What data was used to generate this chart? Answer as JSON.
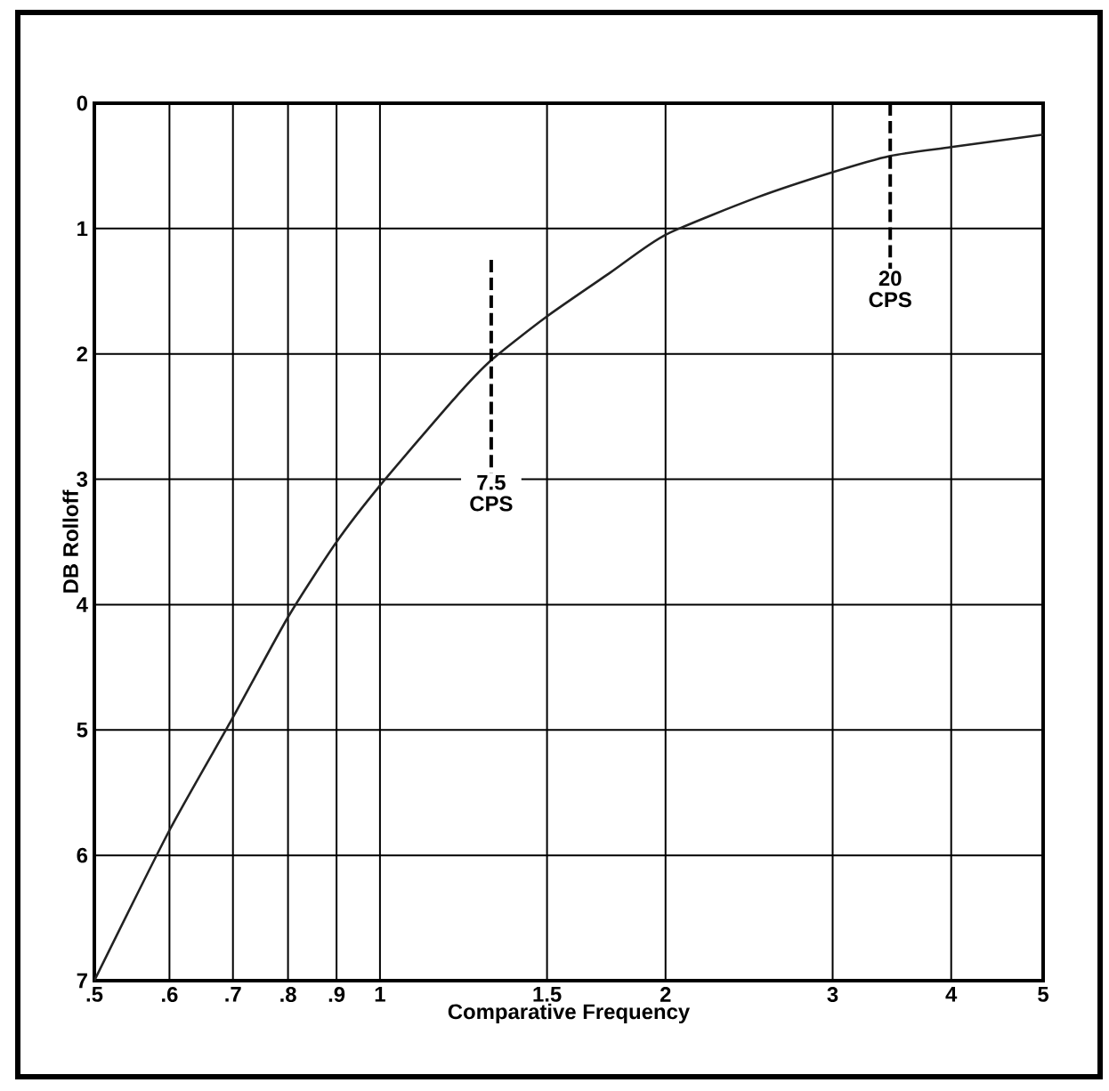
{
  "chart_data": {
    "type": "line",
    "xlabel": "Comparative Frequency",
    "ylabel": "DB Rolloff",
    "log": "x",
    "xlim": [
      0.5,
      5
    ],
    "ylim": [
      7,
      0
    ],
    "xticks": [
      {
        "value": 0.5,
        "label": ".5"
      },
      {
        "value": 0.6,
        "label": ".6"
      },
      {
        "value": 0.7,
        "label": ".7"
      },
      {
        "value": 0.8,
        "label": ".8"
      },
      {
        "value": 0.9,
        "label": ".9"
      },
      1,
      1.5,
      2,
      3,
      4,
      5
    ],
    "yticks": [
      0,
      1,
      2,
      3,
      4,
      5,
      6,
      7
    ],
    "grid": true,
    "color": "#222222",
    "x": [
      0.5,
      0.6,
      0.7,
      0.8,
      0.9,
      1,
      1.2,
      1.31,
      1.5,
      1.75,
      2,
      2.5,
      3,
      3.45,
      4,
      5
    ],
    "values": [
      7,
      5.8,
      4.9,
      4.1,
      3.5,
      3.05,
      2.35,
      2.05,
      1.7,
      1.35,
      1.05,
      0.75,
      0.55,
      0.42,
      0.35,
      0.25
    ],
    "ref_lines": [
      {
        "axis": "x",
        "value": 1.31,
        "label": "7.5 CPS",
        "line_style": "dashed"
      },
      {
        "axis": "x",
        "value": 3.45,
        "label": "20 CPS",
        "line_style": "dashed"
      }
    ]
  }
}
